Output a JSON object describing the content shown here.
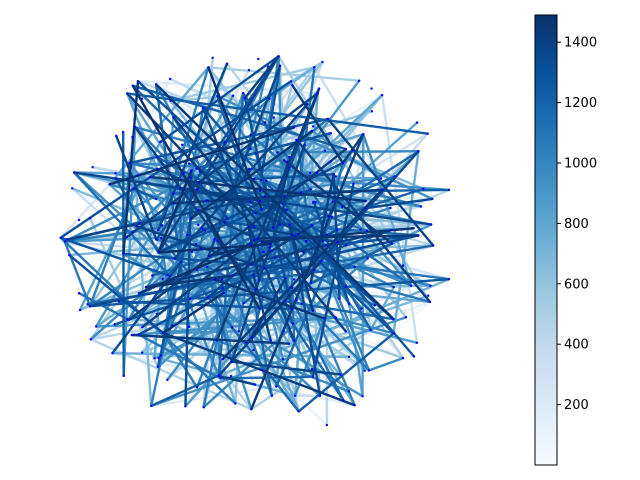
{
  "chart_data": {
    "type": "network-graph",
    "layout": "random-in-circle",
    "node_count": 320,
    "edge_count": 600,
    "node_color": "#0000ff",
    "edge_value_range": [
      0,
      1490
    ],
    "edge_colormap": "Blues",
    "colormap_stops": [
      "#f7fbff",
      "#deebf7",
      "#c6dbef",
      "#9ecae1",
      "#6baed6",
      "#4292c6",
      "#2171b5",
      "#08519c",
      "#08306b"
    ],
    "colorbar": {
      "position": "right",
      "range": [
        0,
        1490
      ],
      "ticks": [
        200,
        400,
        600,
        800,
        1000,
        1200,
        1400
      ],
      "tick_labels": [
        "200",
        "400",
        "600",
        "800",
        "1000",
        "1200",
        "1400"
      ]
    },
    "axes_visible": false,
    "grid": false,
    "title": "",
    "xlabel": "",
    "ylabel": ""
  }
}
